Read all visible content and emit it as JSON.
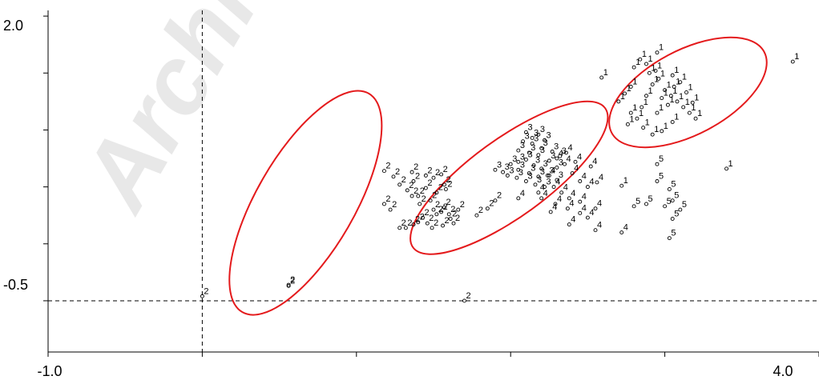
{
  "chart_data": {
    "type": "scatter",
    "title": "",
    "xlabel": "",
    "ylabel": "",
    "xlim": [
      -1.0,
      4.0
    ],
    "ylim": [
      -0.95,
      2.05
    ],
    "x_tick_labels": [
      "-1.0",
      "4.0"
    ],
    "y_tick_labels": [
      "2.0",
      "-0.5"
    ],
    "reference_lines": {
      "x": 0.0,
      "y": -0.5
    },
    "watermark": "Archive",
    "marker_color": "#000000",
    "ellipse_color": "#e41a1c",
    "groups_ellipses": [
      {
        "group": "2",
        "cx": 0.67,
        "cy": 0.36,
        "rx": 0.82,
        "ry": 0.43,
        "angle_deg": -60
      },
      {
        "group": "3/4/5",
        "cx": 1.99,
        "cy": 0.58,
        "rx": 0.77,
        "ry": 0.34,
        "angle_deg": -36
      },
      {
        "group": "1",
        "cx": 3.15,
        "cy": 1.33,
        "rx": 0.56,
        "ry": 0.37,
        "angle_deg": -28
      }
    ],
    "points": [
      {
        "label": "2",
        "x": 0.0,
        "y": -0.46
      },
      {
        "label": "2",
        "x": 0.56,
        "y": -0.37
      },
      {
        "label": "2",
        "x": 0.56,
        "y": -0.36
      },
      {
        "label": "2",
        "x": 1.7,
        "y": -0.5
      },
      {
        "label": "2",
        "x": 1.18,
        "y": 0.35
      },
      {
        "label": "2",
        "x": 1.22,
        "y": 0.3
      },
      {
        "label": "2",
        "x": 1.85,
        "y": 0.31
      },
      {
        "label": "2",
        "x": 1.78,
        "y": 0.25
      },
      {
        "label": "2",
        "x": 1.9,
        "y": 0.38
      },
      {
        "label": "2",
        "x": 1.18,
        "y": 0.64
      },
      {
        "label": "2",
        "x": 1.24,
        "y": 0.59
      },
      {
        "label": "2",
        "x": 1.28,
        "y": 0.52
      },
      {
        "label": "2",
        "x": 1.33,
        "y": 0.47
      },
      {
        "label": "2",
        "x": 1.37,
        "y": 0.55
      },
      {
        "label": "2",
        "x": 1.36,
        "y": 0.42
      },
      {
        "label": "2",
        "x": 1.41,
        "y": 0.35
      },
      {
        "label": "2",
        "x": 1.36,
        "y": 0.63
      },
      {
        "label": "2",
        "x": 1.45,
        "y": 0.6
      },
      {
        "label": "2",
        "x": 1.5,
        "y": 0.58
      },
      {
        "label": "2",
        "x": 1.55,
        "y": 0.61
      },
      {
        "label": "2",
        "x": 1.45,
        "y": 0.49
      },
      {
        "label": "2",
        "x": 1.52,
        "y": 0.45
      },
      {
        "label": "2",
        "x": 1.58,
        "y": 0.48
      },
      {
        "label": "2",
        "x": 1.57,
        "y": 0.52
      },
      {
        "label": "2",
        "x": 1.4,
        "y": 0.19
      },
      {
        "label": "2",
        "x": 1.46,
        "y": 0.18
      },
      {
        "label": "2",
        "x": 1.43,
        "y": 0.23
      },
      {
        "label": "2",
        "x": 1.5,
        "y": 0.3
      },
      {
        "label": "2",
        "x": 1.55,
        "y": 0.28
      },
      {
        "label": "2",
        "x": 1.6,
        "y": 0.26
      },
      {
        "label": "2",
        "x": 1.66,
        "y": 0.3
      },
      {
        "label": "2",
        "x": 1.61,
        "y": 0.22
      },
      {
        "label": "2",
        "x": 1.49,
        "y": 0.14
      },
      {
        "label": "2",
        "x": 1.56,
        "y": 0.16
      },
      {
        "label": "2",
        "x": 1.63,
        "y": 0.18
      },
      {
        "label": "2",
        "x": 1.52,
        "y": 0.26
      },
      {
        "label": "2",
        "x": 1.57,
        "y": 0.32
      },
      {
        "label": "2",
        "x": 1.28,
        "y": 0.14
      },
      {
        "label": "2",
        "x": 1.32,
        "y": 0.14
      },
      {
        "label": "2",
        "x": 1.37,
        "y": 0.17
      },
      {
        "label": "2",
        "x": 1.4,
        "y": 0.42
      },
      {
        "label": "2",
        "x": 1.48,
        "y": 0.38
      },
      {
        "label": "3",
        "x": 2.0,
        "y": 0.7
      },
      {
        "label": "3",
        "x": 2.05,
        "y": 0.72
      },
      {
        "label": "3",
        "x": 2.1,
        "y": 0.74
      },
      {
        "label": "3",
        "x": 2.15,
        "y": 0.69
      },
      {
        "label": "3",
        "x": 2.2,
        "y": 0.66
      },
      {
        "label": "3",
        "x": 2.05,
        "y": 0.82
      },
      {
        "label": "3",
        "x": 2.12,
        "y": 0.8
      },
      {
        "label": "3",
        "x": 2.18,
        "y": 0.78
      },
      {
        "label": "3",
        "x": 2.25,
        "y": 0.73
      },
      {
        "label": "3",
        "x": 2.3,
        "y": 0.67
      },
      {
        "label": "3",
        "x": 2.08,
        "y": 0.9
      },
      {
        "label": "3",
        "x": 2.14,
        "y": 0.88
      },
      {
        "label": "3",
        "x": 2.2,
        "y": 0.84
      },
      {
        "label": "3",
        "x": 2.27,
        "y": 0.81
      },
      {
        "label": "3",
        "x": 2.32,
        "y": 0.77
      },
      {
        "label": "3",
        "x": 1.98,
        "y": 0.6
      },
      {
        "label": "3",
        "x": 2.04,
        "y": 0.58
      },
      {
        "label": "3",
        "x": 2.1,
        "y": 0.55
      },
      {
        "label": "3",
        "x": 2.16,
        "y": 0.52
      },
      {
        "label": "3",
        "x": 2.22,
        "y": 0.5
      },
      {
        "label": "3",
        "x": 1.9,
        "y": 0.65
      },
      {
        "label": "3",
        "x": 1.95,
        "y": 0.63
      },
      {
        "label": "3",
        "x": 2.05,
        "y": 0.65
      },
      {
        "label": "3",
        "x": 2.12,
        "y": 0.62
      },
      {
        "label": "3",
        "x": 2.18,
        "y": 0.59
      },
      {
        "label": "3",
        "x": 2.24,
        "y": 0.6
      },
      {
        "label": "3",
        "x": 2.3,
        "y": 0.56
      },
      {
        "label": "3",
        "x": 2.14,
        "y": 0.93
      },
      {
        "label": "3",
        "x": 2.18,
        "y": 0.96
      },
      {
        "label": "3",
        "x": 2.22,
        "y": 0.91
      },
      {
        "label": "3",
        "x": 2.1,
        "y": 0.98
      },
      {
        "label": "4",
        "x": 2.4,
        "y": 0.62
      },
      {
        "label": "4",
        "x": 2.45,
        "y": 0.55
      },
      {
        "label": "4",
        "x": 2.5,
        "y": 0.5
      },
      {
        "label": "4",
        "x": 2.56,
        "y": 0.54
      },
      {
        "label": "4",
        "x": 2.35,
        "y": 0.7
      },
      {
        "label": "4",
        "x": 2.42,
        "y": 0.72
      },
      {
        "label": "4",
        "x": 2.3,
        "y": 0.75
      },
      {
        "label": "4",
        "x": 2.25,
        "y": 0.6
      },
      {
        "label": "4",
        "x": 2.28,
        "y": 0.5
      },
      {
        "label": "4",
        "x": 2.33,
        "y": 0.45
      },
      {
        "label": "4",
        "x": 2.2,
        "y": 0.4
      },
      {
        "label": "4",
        "x": 2.29,
        "y": 0.35
      },
      {
        "label": "4",
        "x": 2.26,
        "y": 0.28
      },
      {
        "label": "4",
        "x": 2.37,
        "y": 0.31
      },
      {
        "label": "4",
        "x": 2.45,
        "y": 0.27
      },
      {
        "label": "4",
        "x": 2.38,
        "y": 0.17
      },
      {
        "label": "4",
        "x": 2.55,
        "y": 0.12
      },
      {
        "label": "4",
        "x": 2.72,
        "y": 0.1
      },
      {
        "label": "4",
        "x": 2.5,
        "y": 0.23
      },
      {
        "label": "4",
        "x": 2.55,
        "y": 0.31
      },
      {
        "label": "4",
        "x": 2.38,
        "y": 0.4
      },
      {
        "label": "4",
        "x": 2.45,
        "y": 0.37
      },
      {
        "label": "4",
        "x": 2.18,
        "y": 0.45
      },
      {
        "label": "4",
        "x": 2.05,
        "y": 0.4
      },
      {
        "label": "4",
        "x": 2.52,
        "y": 0.68
      },
      {
        "label": "4",
        "x": 2.36,
        "y": 0.8
      },
      {
        "label": "5",
        "x": 2.95,
        "y": 0.55
      },
      {
        "label": "5",
        "x": 3.03,
        "y": 0.48
      },
      {
        "label": "5",
        "x": 3.05,
        "y": 0.38
      },
      {
        "label": "5",
        "x": 3.0,
        "y": 0.33
      },
      {
        "label": "5",
        "x": 2.88,
        "y": 0.35
      },
      {
        "label": "5",
        "x": 3.05,
        "y": 0.22
      },
      {
        "label": "5",
        "x": 2.95,
        "y": 0.7
      },
      {
        "label": "5",
        "x": 3.03,
        "y": 0.05
      },
      {
        "label": "5",
        "x": 2.8,
        "y": 0.33
      },
      {
        "label": "5",
        "x": 3.1,
        "y": 0.3
      },
      {
        "label": "1",
        "x": 2.72,
        "y": 0.51
      },
      {
        "label": "1",
        "x": 3.4,
        "y": 0.66
      },
      {
        "label": "1",
        "x": 3.83,
        "y": 1.6
      },
      {
        "label": "1",
        "x": 2.59,
        "y": 1.46
      },
      {
        "label": "1",
        "x": 3.05,
        "y": 1.07
      },
      {
        "label": "1",
        "x": 2.95,
        "y": 1.15
      },
      {
        "label": "1",
        "x": 2.82,
        "y": 1.1
      },
      {
        "label": "1",
        "x": 2.85,
        "y": 1.2
      },
      {
        "label": "1",
        "x": 2.88,
        "y": 1.3
      },
      {
        "label": "1",
        "x": 2.92,
        "y": 1.4
      },
      {
        "label": "1",
        "x": 2.96,
        "y": 1.45
      },
      {
        "label": "1",
        "x": 3.0,
        "y": 1.35
      },
      {
        "label": "1",
        "x": 3.04,
        "y": 1.3
      },
      {
        "label": "1",
        "x": 3.08,
        "y": 1.25
      },
      {
        "label": "1",
        "x": 3.12,
        "y": 1.2
      },
      {
        "label": "1",
        "x": 3.16,
        "y": 1.15
      },
      {
        "label": "1",
        "x": 3.2,
        "y": 1.1
      },
      {
        "label": "1",
        "x": 2.7,
        "y": 1.25
      },
      {
        "label": "1",
        "x": 2.74,
        "y": 1.32
      },
      {
        "label": "1",
        "x": 2.78,
        "y": 1.38
      },
      {
        "label": "1",
        "x": 2.8,
        "y": 1.55
      },
      {
        "label": "1",
        "x": 2.84,
        "y": 1.62
      },
      {
        "label": "1",
        "x": 2.88,
        "y": 1.58
      },
      {
        "label": "1",
        "x": 2.9,
        "y": 1.5
      },
      {
        "label": "1",
        "x": 2.94,
        "y": 1.52
      },
      {
        "label": "1",
        "x": 2.98,
        "y": 1.28
      },
      {
        "label": "1",
        "x": 3.02,
        "y": 1.22
      },
      {
        "label": "1",
        "x": 3.06,
        "y": 1.38
      },
      {
        "label": "1",
        "x": 3.1,
        "y": 1.42
      },
      {
        "label": "1",
        "x": 2.76,
        "y": 1.05
      },
      {
        "label": "1",
        "x": 2.86,
        "y": 1.02
      },
      {
        "label": "1",
        "x": 2.92,
        "y": 0.96
      },
      {
        "label": "1",
        "x": 2.98,
        "y": 0.99
      },
      {
        "label": "1",
        "x": 3.05,
        "y": 1.48
      },
      {
        "label": "1",
        "x": 3.14,
        "y": 1.33
      },
      {
        "label": "1",
        "x": 3.18,
        "y": 1.24
      },
      {
        "label": "1",
        "x": 2.78,
        "y": 1.15
      },
      {
        "label": "1",
        "x": 2.95,
        "y": 1.68
      }
    ]
  }
}
